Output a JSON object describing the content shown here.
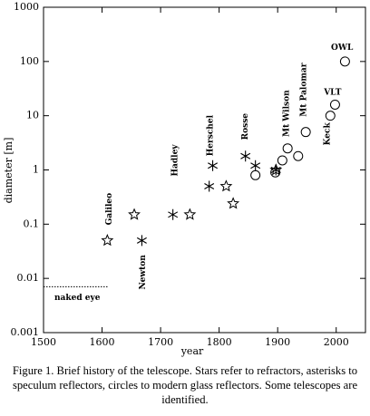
{
  "chart_data": {
    "type": "scatter",
    "xlabel": "year",
    "ylabel": "diameter [m]",
    "xlim": [
      1500,
      2050
    ],
    "ylim": [
      0.001,
      1000
    ],
    "log_y": true,
    "xticks": [
      1500,
      1600,
      1700,
      1800,
      1900,
      2000
    ],
    "yticks": [
      0.001,
      0.01,
      0.1,
      1,
      10,
      100,
      1000
    ],
    "series": [
      {
        "marker": "star",
        "color": "#000000",
        "x": [
          1609,
          1655,
          1750,
          1812,
          1824,
          1897
        ],
        "values": [
          0.05,
          0.15,
          0.15,
          0.5,
          0.24,
          1.0
        ]
      },
      {
        "marker": "asterisk",
        "color": "#000000",
        "x": [
          1668,
          1721,
          1783,
          1789,
          1845,
          1862,
          1897
        ],
        "values": [
          0.05,
          0.15,
          0.5,
          1.2,
          1.8,
          1.2,
          1.0
        ]
      },
      {
        "marker": "circle",
        "color": "#000000",
        "x": [
          1862,
          1896,
          1908,
          1917,
          1935,
          1948,
          1990,
          1998,
          2015
        ],
        "values": [
          0.8,
          0.9,
          1.5,
          2.5,
          1.8,
          5,
          10,
          16,
          100
        ]
      }
    ],
    "reference_line": {
      "y": 0.007,
      "x": [
        1500,
        1610
      ],
      "label": "naked eye"
    },
    "annotations": [
      {
        "text": "Galileo",
        "x": 1612,
        "y": 0.19,
        "vertical": true
      },
      {
        "text": "Newton",
        "x": 1670,
        "y": 0.013,
        "vertical": true
      },
      {
        "text": "Hadley",
        "x": 1725,
        "y": 1.5,
        "vertical": true
      },
      {
        "text": "Herschel",
        "x": 1785,
        "y": 4.3,
        "vertical": true
      },
      {
        "text": "Rosse",
        "x": 1845,
        "y": 6.3,
        "vertical": true
      },
      {
        "text": "Mt Wilson",
        "x": 1915,
        "y": 11,
        "vertical": true
      },
      {
        "text": "Mt Palomar",
        "x": 1945,
        "y": 30,
        "vertical": true
      },
      {
        "text": "Keck",
        "x": 1985,
        "y": 4.6,
        "vertical": true
      },
      {
        "text": "VLT",
        "x": 1994,
        "y": 27,
        "vertical": false
      },
      {
        "text": "OWL",
        "x": 2010,
        "y": 180,
        "vertical": false
      }
    ],
    "caption": "Figure 1. Brief history of the telescope. Stars refer to refractors, asterisks to speculum reflectors, circles to modern glass reflectors. Some telescopes are identified."
  }
}
